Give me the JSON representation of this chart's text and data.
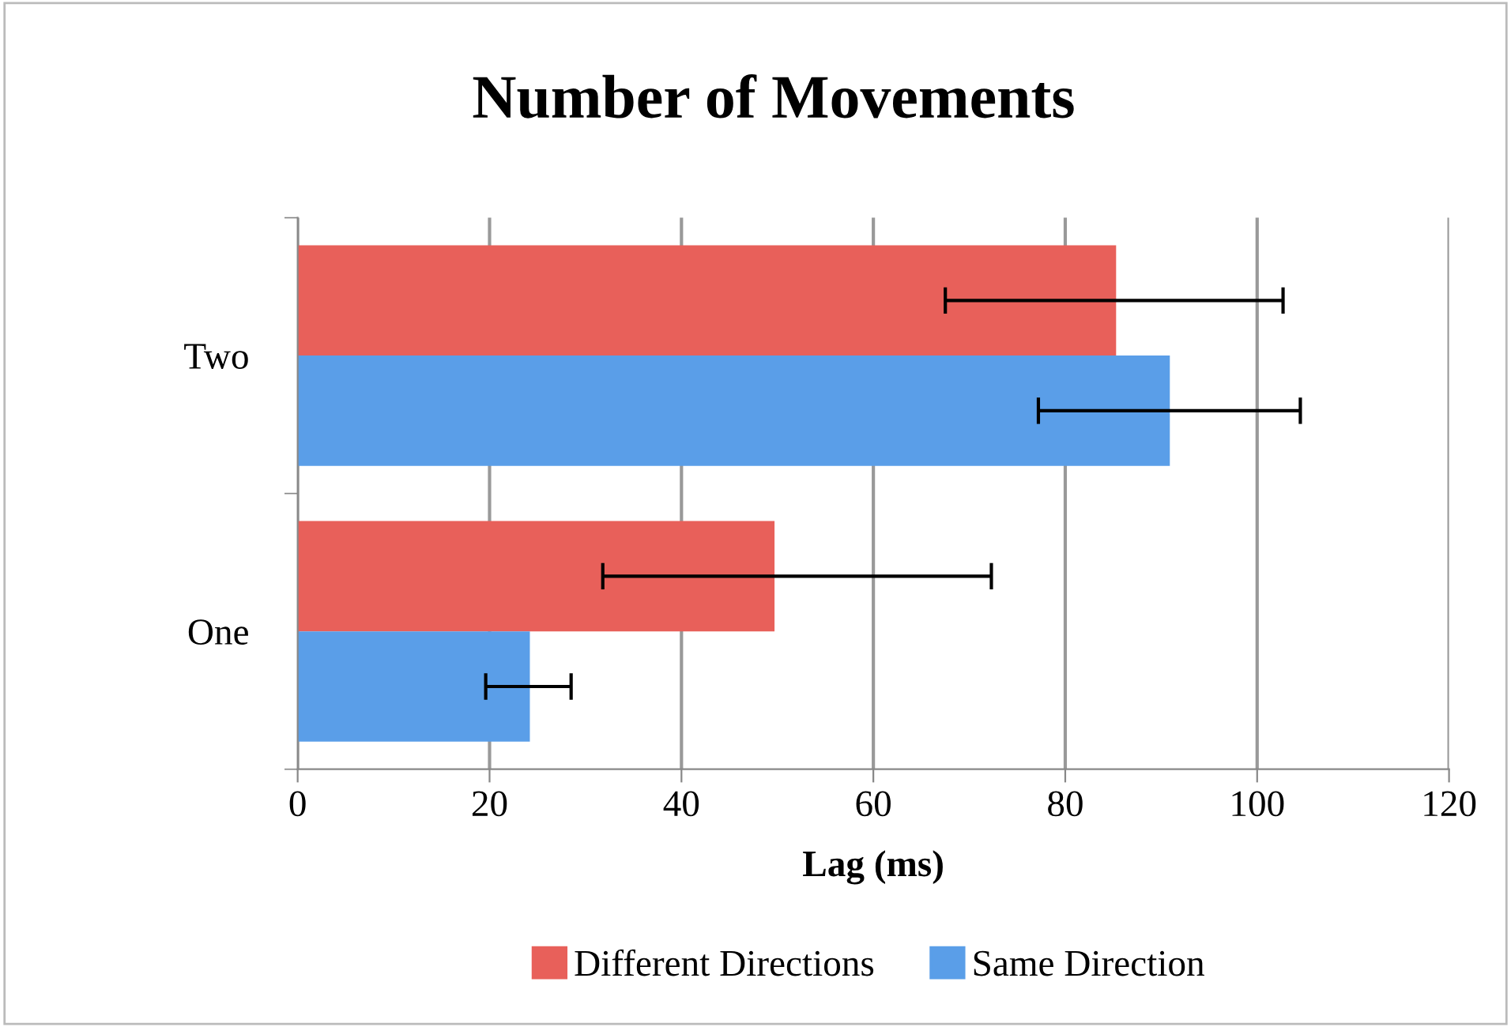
{
  "chart_data": {
    "type": "bar",
    "orientation": "horizontal",
    "title": "Number of Movements",
    "xlabel": "Lag (ms)",
    "categories": [
      "Two",
      "One"
    ],
    "series": [
      {
        "name": "Different Directions",
        "color": "#e8605a",
        "values": [
          85.3,
          49.7
        ],
        "errors": [
          [
            67.5,
            102.7
          ],
          [
            31.8,
            72.3
          ]
        ]
      },
      {
        "name": "Same Direction",
        "color": "#5a9ee8",
        "values": [
          90.9,
          24.2
        ],
        "errors": [
          [
            77.2,
            104.5
          ],
          [
            19.6,
            28.5
          ]
        ]
      }
    ],
    "xlim": [
      0,
      120
    ],
    "xticks": [
      0,
      20,
      40,
      60,
      80,
      100,
      120
    ],
    "grid": "x",
    "legend": "bottom"
  }
}
